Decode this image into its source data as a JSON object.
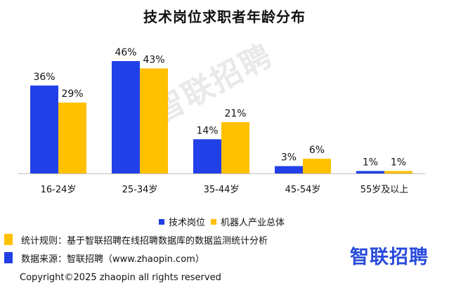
{
  "watermark_text": "智联招聘",
  "brand_logo_text": "智联招聘",
  "notes": [
    {
      "text": "统计规则：基于智联招聘在线招聘数据库的数据监测统计分析",
      "color": "#FFC000"
    },
    {
      "text": "数据来源：智联招聘（www.zhaopin.com）",
      "color": "#2140E8"
    }
  ],
  "copyright": "Copyright©2025 zhaopin all rights reserved",
  "chart_data": {
    "type": "bar",
    "title": "技术岗位求职者年龄分布",
    "categories": [
      "16-24岁",
      "25-34岁",
      "35-44岁",
      "45-54岁",
      "55岁及以上"
    ],
    "series": [
      {
        "name": "技术岗位",
        "values": [
          36,
          46,
          14,
          3,
          1
        ],
        "color": "#2140E8"
      },
      {
        "name": "机器人产业总体",
        "values": [
          29,
          43,
          21,
          6,
          1
        ],
        "color": "#FFC000"
      }
    ],
    "value_suffix": "%",
    "ylim": [
      0,
      46
    ],
    "grid": false,
    "legend_position": "bottom"
  }
}
